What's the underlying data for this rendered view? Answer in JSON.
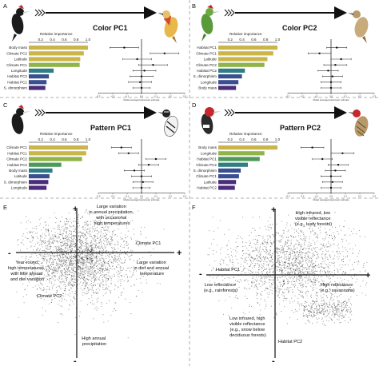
{
  "colors": {
    "gold": "#c9b54a",
    "olive": "#8fb44a",
    "green": "#4f9a5a",
    "teal": "#2f7e86",
    "indigo": "#3a4f8f",
    "purple": "#4b2c7a",
    "dot": "#111111",
    "scatter": "#000000"
  },
  "icons": [
    "woodpecker-illustration",
    "arrow-icon",
    "chevron-icon"
  ],
  "chart_data": [
    {
      "panel": "A",
      "type": "bar",
      "title": "Color PC1",
      "xlabel": "Relative importance",
      "ticks": [
        "0.2",
        "0.4",
        "0.6",
        "0.8",
        "1.0"
      ],
      "xlim": [
        0,
        1
      ],
      "categories": [
        "Body mass",
        "Climate PC2",
        "Latitude",
        "Climate PC1",
        "Longitude",
        "Habitat PC2",
        "Habitat PC1",
        "S. dimorphism"
      ],
      "values": [
        1.0,
        0.93,
        0.87,
        0.86,
        0.42,
        0.34,
        0.3,
        0.28
      ],
      "bar_colors": [
        "#c9b54a",
        "#c9b54a",
        "#c9b54a",
        "#8fb44a",
        "#2f7e86",
        "#3a4f8f",
        "#3a4f8f",
        "#4b2c7a"
      ],
      "estimate_axis": "Model averaged parameter estimate",
      "estimate_ticks": [
        "-0.3",
        "-0.2",
        "-0.1",
        "0.0",
        "0.1",
        "0.2",
        "0.3"
      ],
      "estimate_xlim": [
        -0.3,
        0.3
      ],
      "estimates": [
        -0.12,
        0.16,
        -0.03,
        0.08,
        0.02,
        0.0,
        -0.01,
        0.0
      ],
      "lower": [
        -0.22,
        0.06,
        -0.13,
        -0.02,
        -0.06,
        -0.08,
        -0.09,
        -0.06
      ],
      "upper": [
        -0.02,
        0.26,
        0.07,
        0.18,
        0.1,
        0.08,
        0.07,
        0.06
      ]
    },
    {
      "panel": "B",
      "type": "bar",
      "title": "Color PC2",
      "xlabel": "Relative importance",
      "ticks": [
        "0.2",
        "0.4",
        "0.6",
        "0.8",
        "1.0"
      ],
      "xlim": [
        0,
        1
      ],
      "categories": [
        "Habitat PC1",
        "Climate PC1",
        "Latitude",
        "Climate PC2",
        "Habitat PC2",
        "S. dimorphism",
        "Longitude",
        "Body mass"
      ],
      "values": [
        1.0,
        0.93,
        0.83,
        0.78,
        0.45,
        0.4,
        0.34,
        0.3
      ],
      "bar_colors": [
        "#c9b54a",
        "#c9b54a",
        "#c9b54a",
        "#8fb44a",
        "#2f7e86",
        "#3a4f8f",
        "#3a4f8f",
        "#4b2c7a"
      ],
      "estimate_axis": "Model averaged parameter estimate",
      "estimate_ticks": [
        "-0.3",
        "-0.2",
        "-0.1",
        "0.0",
        "0.1",
        "0.2",
        "0.3"
      ],
      "estimate_xlim": [
        -0.3,
        0.3
      ],
      "estimates": [
        0.04,
        -0.08,
        0.07,
        0.03,
        -0.02,
        0.01,
        0.0,
        0.0
      ],
      "lower": [
        -0.03,
        -0.16,
        0.0,
        -0.05,
        -0.09,
        -0.06,
        -0.07,
        -0.07
      ],
      "upper": [
        0.11,
        0.0,
        0.14,
        0.11,
        0.05,
        0.08,
        0.07,
        0.07
      ]
    },
    {
      "panel": "C",
      "type": "bar",
      "title": "Pattern PC1",
      "xlabel": "Relative importance",
      "ticks": [
        "0.2",
        "0.4",
        "0.6",
        "0.8",
        "1.0"
      ],
      "xlim": [
        0,
        1
      ],
      "categories": [
        "Climate PC1",
        "Habitat PC1",
        "Climate PC2",
        "Habitat PC2",
        "Body mass",
        "Latitude",
        "S. dimorphism",
        "Longitude"
      ],
      "values": [
        1.0,
        0.97,
        0.9,
        0.55,
        0.4,
        0.35,
        0.33,
        0.3
      ],
      "bar_colors": [
        "#c9b54a",
        "#c9b54a",
        "#8fb44a",
        "#4f9a5a",
        "#2f7e86",
        "#3a4f8f",
        "#4b2c7a",
        "#4b2c7a"
      ],
      "estimate_axis": "Model averaged parameter estimate",
      "estimate_ticks": [
        "-0.3",
        "-0.2",
        "-0.1",
        "0.0",
        "0.1",
        "0.2",
        "0.3"
      ],
      "estimate_xlim": [
        -0.3,
        0.3
      ],
      "estimates": [
        -0.14,
        -0.09,
        0.1,
        0.05,
        -0.05,
        0.0,
        0.01,
        0.0
      ],
      "lower": [
        -0.21,
        -0.16,
        0.03,
        -0.02,
        -0.12,
        -0.07,
        -0.06,
        -0.06
      ],
      "upper": [
        -0.07,
        -0.02,
        0.17,
        0.12,
        0.02,
        0.07,
        0.08,
        0.06
      ]
    },
    {
      "panel": "D",
      "type": "bar",
      "title": "Pattern PC2",
      "xlabel": "Relative importance",
      "ticks": [
        "0.2",
        "0.4",
        "0.6",
        "0.8",
        "1.0"
      ],
      "xlim": [
        0,
        1
      ],
      "categories": [
        "Body mass",
        "Longitude",
        "Habitat PC1",
        "Climate PC2",
        "S. dimorphism",
        "Climate PC1",
        "Latitude",
        "Habitat PC2"
      ],
      "values": [
        1.0,
        0.78,
        0.7,
        0.5,
        0.38,
        0.35,
        0.3,
        0.28
      ],
      "bar_colors": [
        "#c9b54a",
        "#8fb44a",
        "#4f9a5a",
        "#2f7e86",
        "#3a4f8f",
        "#3a4f8f",
        "#4b2c7a",
        "#4b2c7a"
      ],
      "estimate_axis": "Model averaged parameter estimate",
      "estimate_ticks": [
        "-0.3",
        "-0.2",
        "-0.1",
        "0.0",
        "0.1",
        "0.2",
        "0.3"
      ],
      "estimate_xlim": [
        -0.3,
        0.3
      ],
      "estimates": [
        -0.13,
        0.08,
        -0.06,
        0.05,
        0.03,
        0.0,
        0.01,
        0.0
      ],
      "lower": [
        -0.21,
        0.0,
        -0.13,
        -0.02,
        -0.04,
        -0.07,
        -0.06,
        -0.07
      ],
      "upper": [
        -0.05,
        0.16,
        0.01,
        0.12,
        0.1,
        0.07,
        0.08,
        0.07
      ]
    },
    {
      "panel": "E",
      "type": "scatter",
      "xlabel": "Climate PC1",
      "ylabel": "Climate PC2",
      "xlim": [
        -1,
        1
      ],
      "ylim": [
        -1,
        1
      ],
      "annotations": [
        "Large variation in annual precipitation, with occasional high temperatures",
        "Year-round high temperatures, with little annual and diel variation",
        "Large variation in diel and annual temperature",
        "High annual precipitation"
      ],
      "signs": [
        "+",
        "-",
        "-",
        "+"
      ],
      "point_count": 2500,
      "cloud": {
        "cx": -0.25,
        "cy": 0.38,
        "sx": 0.32,
        "sy": 0.28
      }
    },
    {
      "panel": "F",
      "type": "scatter",
      "xlabel": "Habitat PC1",
      "ylabel": "Habitat PC2",
      "xlim": [
        -1,
        1
      ],
      "ylim": [
        -1,
        1
      ],
      "annotations": [
        "High infrared, low visible reflectance (e.g., leafy forests)",
        "Low reflectance (e.g., rainforests)",
        "High reflectance (e.g., savannahs)",
        "Low infrared, high visible reflectance (e.g., snow below deciduous forests)"
      ],
      "signs": [
        "+",
        "-",
        "+",
        "-"
      ],
      "point_count": 2200,
      "cloud": {
        "cx": 0.05,
        "cy": 0.25,
        "sx": 0.42,
        "sy": 0.27
      }
    }
  ]
}
